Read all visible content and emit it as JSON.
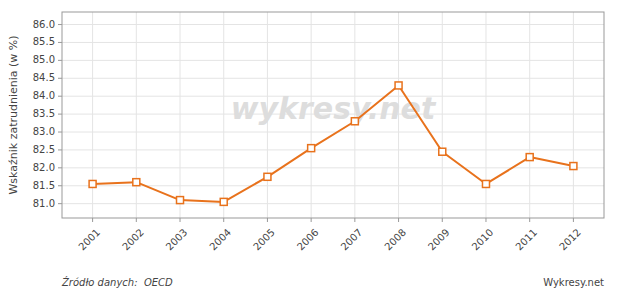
{
  "chart_data": {
    "type": "line",
    "ylabel": "Wskaźnik zatrudnienia (w %)",
    "x": [
      2001,
      2002,
      2003,
      2004,
      2005,
      2006,
      2007,
      2008,
      2009,
      2010,
      2011,
      2012
    ],
    "values": [
      81.55,
      81.6,
      81.1,
      81.05,
      81.75,
      82.55,
      83.3,
      84.3,
      82.45,
      81.55,
      82.3,
      82.05
    ],
    "color": "#e8721c",
    "marker": "square",
    "xlim": [
      2000.3,
      2012.7
    ],
    "xticks": [
      2001,
      2002,
      2003,
      2004,
      2005,
      2006,
      2007,
      2008,
      2009,
      2010,
      2011,
      2012
    ],
    "ylim": [
      80.6,
      86.35
    ],
    "yticks": [
      {
        "value": 81.0,
        "label": "81.0"
      },
      {
        "value": 81.5,
        "label": "81.5"
      },
      {
        "value": 82.0,
        "label": "82.0"
      },
      {
        "value": 82.5,
        "label": "82.5"
      },
      {
        "value": 83.0,
        "label": "83.0"
      },
      {
        "value": 83.5,
        "label": "83.5"
      },
      {
        "value": 84.0,
        "label": "84.0"
      },
      {
        "value": 84.5,
        "label": "84.5"
      },
      {
        "value": 85.0,
        "label": "85.0"
      },
      {
        "value": 85.5,
        "label": "85.5"
      },
      {
        "value": 86.0,
        "label": "86.0"
      }
    ],
    "grid": true,
    "annotations": [
      "wykresy.net",
      "Źródło danych:  OECD",
      "Wykresy.net"
    ]
  }
}
